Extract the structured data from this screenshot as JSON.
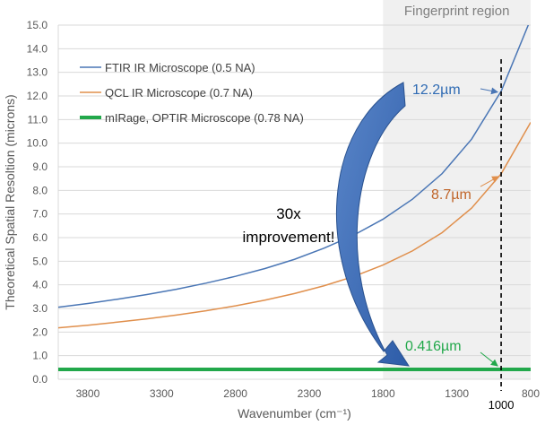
{
  "chart_data": {
    "type": "line",
    "xlabel": "Wavenumber (cm⁻¹)",
    "ylabel": "Theoretical Spatial Resoltion (microns)",
    "xlim": [
      4000,
      800
    ],
    "ylim": [
      0,
      15
    ],
    "x_reversed": true,
    "xticks": [
      3800,
      3300,
      2800,
      2300,
      1800,
      1300,
      800
    ],
    "yticks": [
      0.0,
      1.0,
      2.0,
      3.0,
      4.0,
      5.0,
      6.0,
      7.0,
      8.0,
      9.0,
      10.0,
      11.0,
      12.0,
      13.0,
      14.0,
      15.0
    ],
    "grid": "horizontal",
    "legend_position": "top-left",
    "region": {
      "label": "Fingerprint region",
      "x_from": 1800,
      "x_to": 800,
      "color": "#f0f0f0"
    },
    "marker": {
      "x": 1000,
      "label": "1000",
      "style": "dashed"
    },
    "series": [
      {
        "name": "FTIR IR Microscope (0.5 NA)",
        "color": "#4a76b5",
        "x": [
          4000,
          3800,
          3600,
          3400,
          3200,
          3000,
          2800,
          2600,
          2400,
          2200,
          2000,
          1800,
          1600,
          1400,
          1200,
          1000,
          800
        ],
        "y": [
          3.05,
          3.21,
          3.39,
          3.59,
          3.81,
          4.07,
          4.36,
          4.69,
          5.08,
          5.55,
          6.1,
          6.78,
          7.63,
          8.71,
          10.17,
          12.2,
          15.25
        ]
      },
      {
        "name": "QCL IR Microscope (0.7 NA)",
        "color": "#e08f4c",
        "x": [
          4000,
          3800,
          3600,
          3400,
          3200,
          3000,
          2800,
          2600,
          2400,
          2200,
          2000,
          1800,
          1600,
          1400,
          1200,
          1000,
          800
        ],
        "y": [
          2.18,
          2.29,
          2.42,
          2.56,
          2.72,
          2.9,
          3.11,
          3.35,
          3.63,
          3.96,
          4.35,
          4.84,
          5.44,
          6.21,
          7.25,
          8.7,
          10.88
        ]
      },
      {
        "name": "mIRage, OPTIR Microscope (0.78 NA)",
        "color": "#22a84b",
        "x": [
          4000,
          800
        ],
        "y": [
          0.416,
          0.416
        ]
      }
    ],
    "annotations": [
      {
        "text": "12.2µm",
        "x": 1000,
        "y": 12.2,
        "color": "#2f6bb3"
      },
      {
        "text": "8.7µm",
        "x": 1000,
        "y": 8.7,
        "color": "#c0652a"
      },
      {
        "text": "0.416µm",
        "x": 1000,
        "y": 0.416,
        "color": "#22a84b"
      },
      {
        "text": "30x improvement!",
        "color": "#000000"
      }
    ]
  },
  "labels": {
    "region_label": "Fingerprint region",
    "marker_label": "1000",
    "improvement_line1": "30x",
    "improvement_line2": "improvement!"
  }
}
